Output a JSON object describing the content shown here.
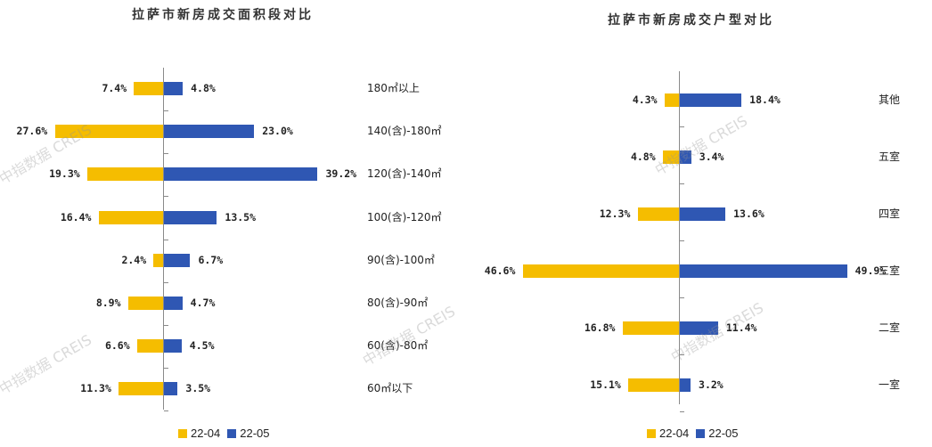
{
  "colors": {
    "series_a": "#f5bd00",
    "series_b": "#2f57b3",
    "axis": "#8a8a8a"
  },
  "watermark": "中指数据 CREIS",
  "chart_data": [
    {
      "type": "bar",
      "orientation": "horizontal-diverging",
      "title": "拉萨市新房成交面积段对比",
      "categories": [
        "180㎡以上",
        "140(含)-180㎡",
        "120(含)-140㎡",
        "100(含)-120㎡",
        "90(含)-100㎡",
        "80(含)-90㎡",
        "60(含)-80㎡",
        "60㎡以下"
      ],
      "series": [
        {
          "name": "22-04",
          "values": [
            7.4,
            27.6,
            19.3,
            16.4,
            2.4,
            8.9,
            6.6,
            11.3
          ],
          "labels": [
            "7.4%",
            "27.6%",
            "19.3%",
            "16.4%",
            "2.4%",
            "8.9%",
            "6.6%",
            "11.3%"
          ]
        },
        {
          "name": "22-05",
          "values": [
            4.8,
            23.0,
            39.2,
            13.5,
            6.7,
            4.7,
            4.5,
            3.5
          ],
          "labels": [
            "4.8%",
            "23.0%",
            "39.2%",
            "13.5%",
            "6.7%",
            "4.7%",
            "4.5%",
            "3.5%"
          ]
        }
      ],
      "unit": "%",
      "legend_position": "bottom",
      "grid": false
    },
    {
      "type": "bar",
      "orientation": "horizontal-diverging",
      "title": "拉萨市新房成交户型对比",
      "categories": [
        "其他",
        "五室",
        "四室",
        "三室",
        "二室",
        "一室"
      ],
      "series": [
        {
          "name": "22-04",
          "values": [
            4.3,
            4.8,
            12.3,
            46.6,
            16.8,
            15.1
          ],
          "labels": [
            "4.3%",
            "4.8%",
            "12.3%",
            "46.6%",
            "16.8%",
            "15.1%"
          ]
        },
        {
          "name": "22-05",
          "values": [
            18.4,
            3.4,
            13.6,
            49.9,
            11.4,
            3.2
          ],
          "labels": [
            "18.4%",
            "3.4%",
            "13.6%",
            "49.9%",
            "11.4%",
            "3.2%"
          ]
        }
      ],
      "unit": "%",
      "legend_position": "bottom",
      "grid": false
    }
  ],
  "left": {
    "title": "拉萨市新房成交面积段对比",
    "legend": [
      "22-04",
      "22-05"
    ],
    "rows": [
      {
        "cat": "180㎡以上",
        "a": "7.4%",
        "b": "4.8%"
      },
      {
        "cat": "140(含)-180㎡",
        "a": "27.6%",
        "b": "23.0%"
      },
      {
        "cat": "120(含)-140㎡",
        "a": "19.3%",
        "b": "39.2%"
      },
      {
        "cat": "100(含)-120㎡",
        "a": "16.4%",
        "b": "13.5%"
      },
      {
        "cat": "90(含)-100㎡",
        "a": "2.4%",
        "b": "6.7%"
      },
      {
        "cat": "80(含)-90㎡",
        "a": "8.9%",
        "b": "4.7%"
      },
      {
        "cat": "60(含)-80㎡",
        "a": "6.6%",
        "b": "4.5%"
      },
      {
        "cat": "60㎡以下",
        "a": "11.3%",
        "b": "3.5%"
      }
    ]
  },
  "right": {
    "title": "拉萨市新房成交户型对比",
    "legend": [
      "22-04",
      "22-05"
    ],
    "rows": [
      {
        "cat": "其他",
        "a": "4.3%",
        "b": "18.4%"
      },
      {
        "cat": "五室",
        "a": "4.8%",
        "b": "3.4%"
      },
      {
        "cat": "四室",
        "a": "12.3%",
        "b": "13.6%"
      },
      {
        "cat": "三室",
        "a": "46.6%",
        "b": "49.9%"
      },
      {
        "cat": "二室",
        "a": "16.8%",
        "b": "11.4%"
      },
      {
        "cat": "一室",
        "a": "15.1%",
        "b": "3.2%"
      }
    ]
  }
}
